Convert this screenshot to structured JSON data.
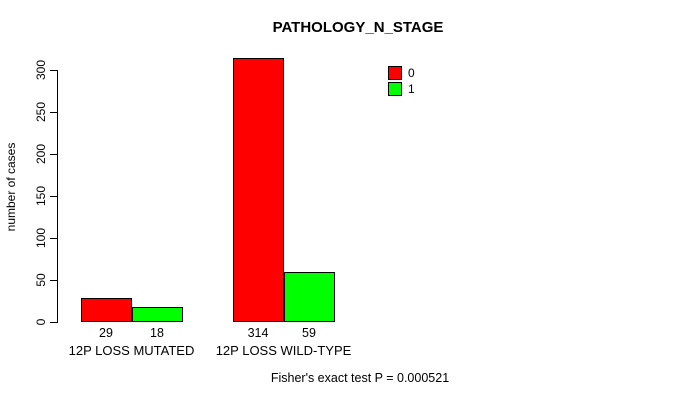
{
  "chart_data": {
    "type": "bar",
    "title": "PATHOLOGY_N_STAGE",
    "ylabel": "number of cases",
    "xlabel": "",
    "categories": [
      "12P LOSS MUTATED",
      "12P LOSS WILD-TYPE"
    ],
    "series": [
      {
        "name": "0",
        "color": "#ff0000",
        "values": [
          29,
          314
        ]
      },
      {
        "name": "1",
        "color": "#00ff00",
        "values": [
          18,
          59
        ]
      }
    ],
    "ylim": [
      0,
      300
    ],
    "yticks": [
      0,
      50,
      100,
      150,
      200,
      250,
      300
    ],
    "grid": false,
    "legend": {
      "position": "top-right",
      "entries": [
        {
          "label": "0",
          "color": "#ff0000"
        },
        {
          "label": "1",
          "color": "#00ff00"
        }
      ]
    },
    "footer": "Fisher's exact test P = 0.000521",
    "bar_border_color": "#000000",
    "background_color": "#ffffff"
  }
}
